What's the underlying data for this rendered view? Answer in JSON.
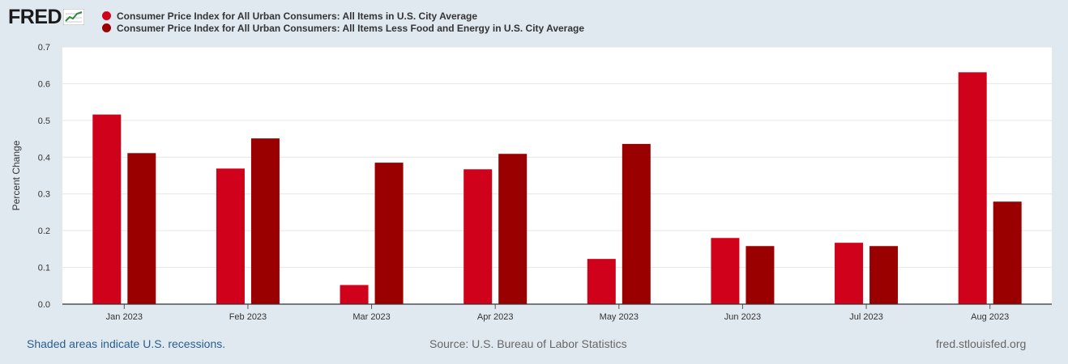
{
  "header": {
    "logo_text": "FRED",
    "logo_icon": "line-chart-icon"
  },
  "legend": [
    {
      "label": "Consumer Price Index for All Urban Consumers: All Items in U.S. City Average",
      "color": "#d0021b"
    },
    {
      "label": "Consumer Price Index for All Urban Consumers: All Items Less Food and Energy in U.S. City Average",
      "color": "#9b0000"
    }
  ],
  "footer": {
    "recessions_note": "Shaded areas indicate U.S. recessions.",
    "source": "Source: U.S. Bureau of Labor Statistics",
    "site": "fred.stlouisfed.org"
  },
  "chart_data": {
    "type": "bar",
    "title": "",
    "xlabel": "",
    "ylabel": "Percent Change",
    "ylim": [
      0,
      0.7
    ],
    "yticks": [
      "0.0",
      "0.1",
      "0.2",
      "0.3",
      "0.4",
      "0.5",
      "0.6",
      "0.7"
    ],
    "categories": [
      "Jan 2023",
      "Feb 2023",
      "Mar 2023",
      "Apr 2023",
      "May 2023",
      "Jun 2023",
      "Jul 2023",
      "Aug 2023"
    ],
    "series": [
      {
        "name": "Consumer Price Index for All Urban Consumers: All Items in U.S. City Average",
        "color": "#d0021b",
        "values": [
          0.516,
          0.369,
          0.052,
          0.367,
          0.123,
          0.18,
          0.167,
          0.631
        ]
      },
      {
        "name": "Consumer Price Index for All Urban Consumers: All Items Less Food and Energy in U.S. City Average",
        "color": "#9b0000",
        "values": [
          0.411,
          0.451,
          0.385,
          0.409,
          0.436,
          0.158,
          0.158,
          0.279
        ]
      }
    ],
    "grid": true
  }
}
